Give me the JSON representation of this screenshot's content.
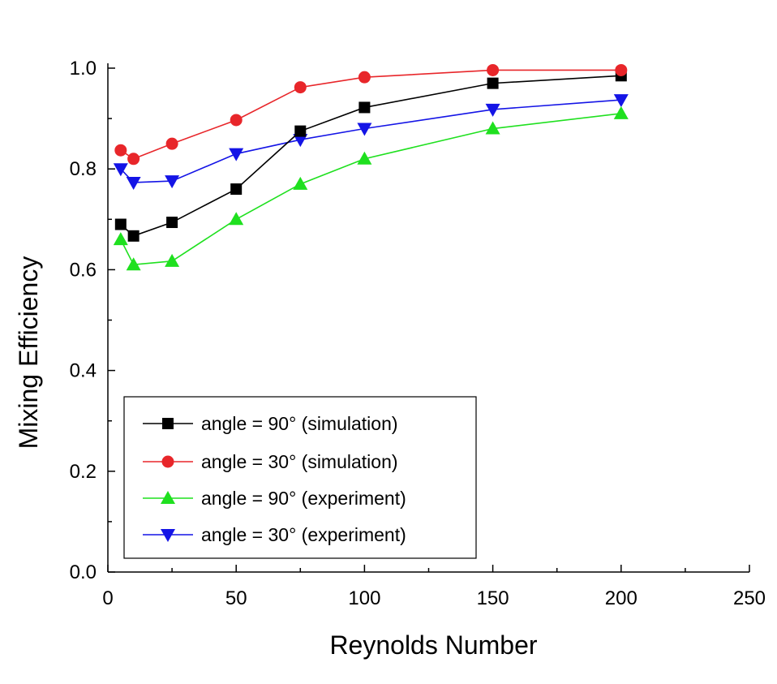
{
  "chart_data": {
    "type": "line",
    "xlabel": "Reynolds Number",
    "ylabel": "Mixing Efficiency",
    "xlim": [
      0,
      250
    ],
    "ylim": [
      0.0,
      1.0
    ],
    "xticks": [
      0,
      50,
      100,
      150,
      200,
      250
    ],
    "xtick_labels": [
      "0",
      "50",
      "100",
      "150",
      "200",
      "250"
    ],
    "yticks": [
      0.0,
      0.2,
      0.4,
      0.6,
      0.8,
      1.0
    ],
    "ytick_labels": [
      "0.0",
      "0.2",
      "0.4",
      "0.6",
      "0.8",
      "1.0"
    ],
    "grid": false,
    "legend_position": "bottom-left",
    "series": [
      {
        "name": "angle = 90° (simulation)",
        "color": "#000000",
        "marker": "square",
        "x": [
          5,
          10,
          25,
          50,
          75,
          100,
          150,
          200
        ],
        "y": [
          0.69,
          0.667,
          0.694,
          0.76,
          0.875,
          0.922,
          0.97,
          0.985
        ]
      },
      {
        "name": "angle = 30° (simulation)",
        "color": "#e8262a",
        "marker": "circle",
        "x": [
          5,
          10,
          25,
          50,
          75,
          100,
          150,
          200
        ],
        "y": [
          0.837,
          0.82,
          0.85,
          0.897,
          0.962,
          0.982,
          0.996,
          0.996
        ]
      },
      {
        "name": "angle = 90° (experiment)",
        "color": "#1fe01f",
        "marker": "triangle-up",
        "x": [
          5,
          10,
          25,
          50,
          75,
          100,
          150,
          200
        ],
        "y": [
          0.66,
          0.61,
          0.617,
          0.7,
          0.77,
          0.82,
          0.88,
          0.91
        ]
      },
      {
        "name": "angle = 30° (experiment)",
        "color": "#1414e6",
        "marker": "triangle-down",
        "x": [
          5,
          10,
          25,
          50,
          75,
          100,
          150,
          200
        ],
        "y": [
          0.8,
          0.773,
          0.776,
          0.83,
          0.858,
          0.88,
          0.918,
          0.937
        ]
      }
    ]
  }
}
